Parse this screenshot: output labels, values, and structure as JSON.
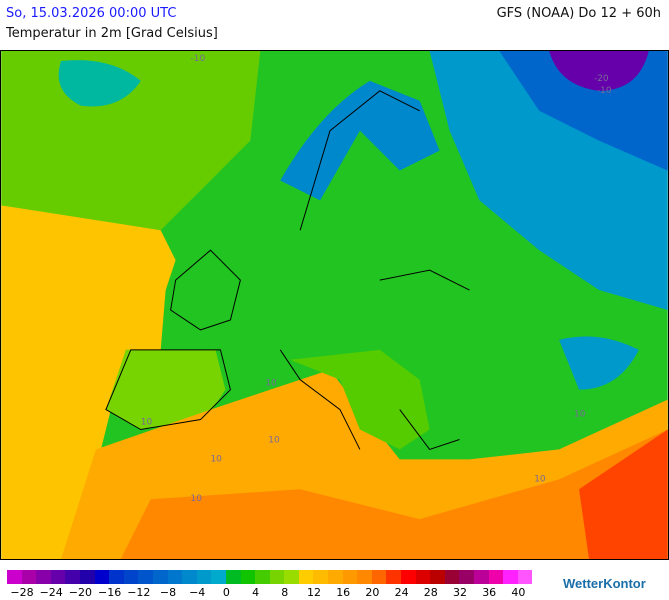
{
  "header": {
    "date": "So, 15.03.2026 00:00 UTC",
    "model": "GFS (NOAA) Do 12 + 60h",
    "parameter": "Temperatur in 2m [Grad Celsius]"
  },
  "map": {
    "contour_labels": [
      "-10",
      "-20",
      "-10",
      "10",
      "10",
      "10",
      "10",
      "10",
      "10",
      "10"
    ]
  },
  "legend": {
    "colors": [
      "#cc00cc",
      "#aa00aa",
      "#8800aa",
      "#6600aa",
      "#4400aa",
      "#2200aa",
      "#0000cc",
      "#0033cc",
      "#0044cc",
      "#0055cc",
      "#0066cc",
      "#0077cc",
      "#0088cc",
      "#0099cc",
      "#00aacc",
      "#00bb22",
      "#11c400",
      "#44cc00",
      "#77d400",
      "#99dd00",
      "#ffcc00",
      "#ffbb00",
      "#ffaa00",
      "#ff9900",
      "#ff8800",
      "#ff6600",
      "#ff3300",
      "#ff0000",
      "#dd0000",
      "#bb0000",
      "#990033",
      "#990066",
      "#bb0099",
      "#ee00aa",
      "#ff22ff",
      "#ff55ff"
    ],
    "ticks": [
      "−28",
      "−24",
      "−20",
      "−16",
      "−12",
      "−8",
      "−4",
      "0",
      "4",
      "8",
      "12",
      "16",
      "20",
      "24",
      "28",
      "32",
      "36",
      "40"
    ]
  },
  "logo": "WetterKontor"
}
